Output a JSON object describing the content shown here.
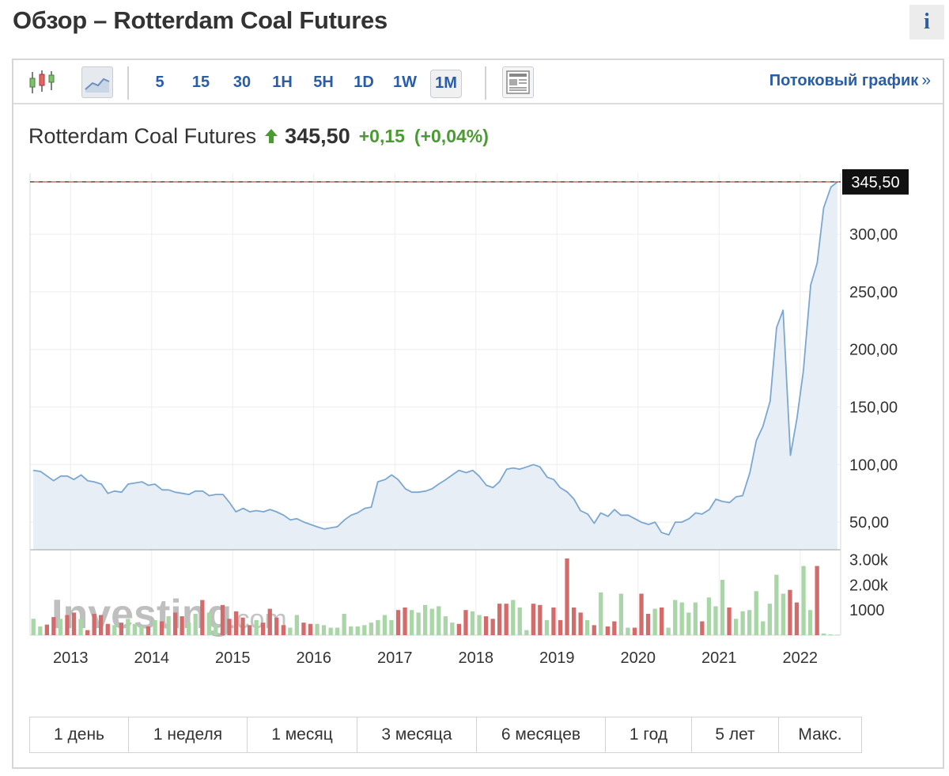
{
  "page": {
    "title": "Обзор – Rotterdam Coal Futures",
    "info_label": "i"
  },
  "toolbar": {
    "intervals": [
      "5",
      "15",
      "30",
      "1H",
      "5H",
      "1D",
      "1W",
      "1M"
    ],
    "active_interval": "1M",
    "stream_label": "Потоковый график",
    "stream_arrow": "»",
    "icons": {
      "candlestick": "candlestick-chart-icon",
      "line": "line-chart-icon",
      "news": "news-layout-icon"
    }
  },
  "quote": {
    "name": "Rotterdam Coal Futures",
    "price": "345,50",
    "change": "+0,15",
    "change_pct": "(+0,04%)",
    "direction_icon": "up-arrow-icon"
  },
  "colors": {
    "line": "#7ba7d0",
    "area": "#e7eef6",
    "up": "#a9d6a6",
    "down": "#d46b6b",
    "current_line": "#c0392b",
    "label_bg": "#111111"
  },
  "chart_data": {
    "type": "area",
    "title": "",
    "xlabel": "",
    "ylabel": "",
    "x_ticks": [
      "2013",
      "2014",
      "2015",
      "2016",
      "2017",
      "2018",
      "2019",
      "2020",
      "2021",
      "2022"
    ],
    "y_ticks": [
      "300,00",
      "250,00",
      "200,00",
      "150,00",
      "100,00",
      "50,00"
    ],
    "ylim": [
      26,
      353
    ],
    "xlim": [
      2012.5,
      2022.5
    ],
    "current_value": 345.5,
    "current_label": "345,50",
    "grid": true,
    "series": [
      {
        "x": [
          2012.54,
          2012.63,
          2012.71,
          2012.79,
          2012.88,
          2012.96,
          2013.04,
          2013.13,
          2013.21,
          2013.29,
          2013.38,
          2013.46,
          2013.54,
          2013.63,
          2013.71,
          2013.79,
          2013.88,
          2013.96,
          2014.04,
          2014.13,
          2014.21,
          2014.29,
          2014.38,
          2014.46,
          2014.54,
          2014.63,
          2014.71,
          2014.79,
          2014.88,
          2014.96,
          2015.04,
          2015.13,
          2015.21,
          2015.29,
          2015.38,
          2015.46,
          2015.54,
          2015.63,
          2015.71,
          2015.79,
          2015.88,
          2015.96,
          2016.04,
          2016.13,
          2016.21,
          2016.29,
          2016.38,
          2016.46,
          2016.54,
          2016.63,
          2016.71,
          2016.79,
          2016.88,
          2016.96,
          2017.04,
          2017.13,
          2017.21,
          2017.29,
          2017.38,
          2017.46,
          2017.54,
          2017.63,
          2017.71,
          2017.79,
          2017.88,
          2017.96,
          2018.04,
          2018.13,
          2018.21,
          2018.29,
          2018.38,
          2018.46,
          2018.54,
          2018.63,
          2018.71,
          2018.79,
          2018.88,
          2018.96,
          2019.04,
          2019.13,
          2019.21,
          2019.29,
          2019.38,
          2019.46,
          2019.54,
          2019.63,
          2019.71,
          2019.79,
          2019.88,
          2019.96,
          2020.04,
          2020.13,
          2020.21,
          2020.29,
          2020.38,
          2020.46,
          2020.54,
          2020.63,
          2020.71,
          2020.79,
          2020.88,
          2020.96,
          2021.04,
          2021.13,
          2021.21,
          2021.29,
          2021.38,
          2021.46,
          2021.54,
          2021.63,
          2021.71,
          2021.79,
          2021.88,
          2021.96,
          2022.04,
          2022.13,
          2022.21,
          2022.29,
          2022.38,
          2022.46
        ],
        "y": [
          95,
          94,
          90,
          86,
          90,
          90,
          87,
          91,
          86,
          85,
          83,
          75,
          77,
          76,
          83,
          84,
          85,
          82,
          83,
          78,
          78,
          76,
          75,
          74,
          77,
          77,
          73,
          74,
          74,
          67,
          59,
          62,
          59,
          60,
          59,
          61,
          59,
          56,
          52,
          53,
          50,
          48,
          46,
          44,
          45,
          46,
          52,
          56,
          58,
          62,
          63,
          85,
          87,
          91,
          87,
          79,
          76,
          76,
          77,
          79,
          83,
          87,
          91,
          95,
          93,
          95,
          90,
          82,
          80,
          85,
          96,
          97,
          96,
          98,
          100,
          98,
          89,
          87,
          80,
          76,
          70,
          60,
          57,
          49,
          58,
          55,
          61,
          56,
          56,
          53,
          50,
          48,
          50,
          41,
          39,
          50,
          50,
          53,
          58,
          57,
          61,
          70,
          68,
          67,
          72,
          73,
          93,
          121,
          133,
          155,
          219,
          234,
          108,
          140,
          181,
          256,
          275,
          323,
          341,
          345.5
        ]
      }
    ],
    "volume": {
      "ticks": [
        "3.00k",
        "2.00k",
        "1000"
      ],
      "ylim": [
        0,
        3300
      ],
      "values": [
        650,
        350,
        420,
        720,
        650,
        800,
        900,
        640,
        200,
        850,
        800,
        450,
        400,
        500,
        650,
        450,
        350,
        350,
        600,
        550,
        750,
        900,
        750,
        500,
        850,
        1400,
        900,
        400,
        1200,
        650,
        950,
        700,
        400,
        600,
        500,
        1050,
        700,
        400,
        300,
        800,
        500,
        450,
        450,
        400,
        300,
        300,
        850,
        350,
        350,
        400,
        500,
        600,
        800,
        600,
        1000,
        1100,
        1000,
        900,
        1200,
        1050,
        1150,
        750,
        500,
        450,
        1000,
        950,
        800,
        750,
        650,
        1250,
        1250,
        1400,
        1100,
        200,
        1250,
        1200,
        600,
        1100,
        600,
        3050,
        1100,
        900,
        600,
        400,
        1700,
        350,
        550,
        1650,
        300,
        300,
        1650,
        850,
        1050,
        1100,
        300,
        1400,
        1300,
        900,
        1300,
        550,
        1500,
        1150,
        2200,
        1100,
        650,
        950,
        1000,
        1750,
        550,
        1250,
        2400,
        1650,
        1800,
        1300,
        2750,
        1000,
        2750,
        70,
        30,
        20
      ],
      "directions": [
        "u",
        "u",
        "d",
        "d",
        "u",
        "d",
        "d",
        "u",
        "d",
        "d",
        "d",
        "d",
        "u",
        "d",
        "u",
        "u",
        "u",
        "d",
        "u",
        "d",
        "u",
        "d",
        "d",
        "u",
        "u",
        "d",
        "u",
        "u",
        "d",
        "d",
        "d",
        "d",
        "d",
        "u",
        "d",
        "d",
        "d",
        "d",
        "u",
        "u",
        "d",
        "d",
        "u",
        "u",
        "u",
        "u",
        "u",
        "u",
        "u",
        "u",
        "u",
        "u",
        "u",
        "u",
        "d",
        "d",
        "u",
        "u",
        "u",
        "u",
        "u",
        "u",
        "u",
        "d",
        "d",
        "u",
        "u",
        "d",
        "d",
        "d",
        "d",
        "u",
        "u",
        "u",
        "d",
        "d",
        "u",
        "d",
        "d",
        "d",
        "d",
        "d",
        "u",
        "d",
        "u",
        "d",
        "d",
        "u",
        "u",
        "d",
        "d",
        "d",
        "u",
        "d",
        "u",
        "u",
        "u",
        "u",
        "u",
        "d",
        "u",
        "u",
        "u",
        "d",
        "u",
        "u",
        "u",
        "u",
        "u",
        "u",
        "u",
        "u",
        "d",
        "d",
        "u",
        "u",
        "d",
        "u",
        "u",
        "u"
      ]
    }
  },
  "watermark": {
    "brand": "Investing",
    "suffix": ".com"
  },
  "ranges": [
    "1 день",
    "1 неделя",
    "1 месяц",
    "3 месяца",
    "6 месяцев",
    "1 год",
    "5 лет",
    "Макс."
  ]
}
